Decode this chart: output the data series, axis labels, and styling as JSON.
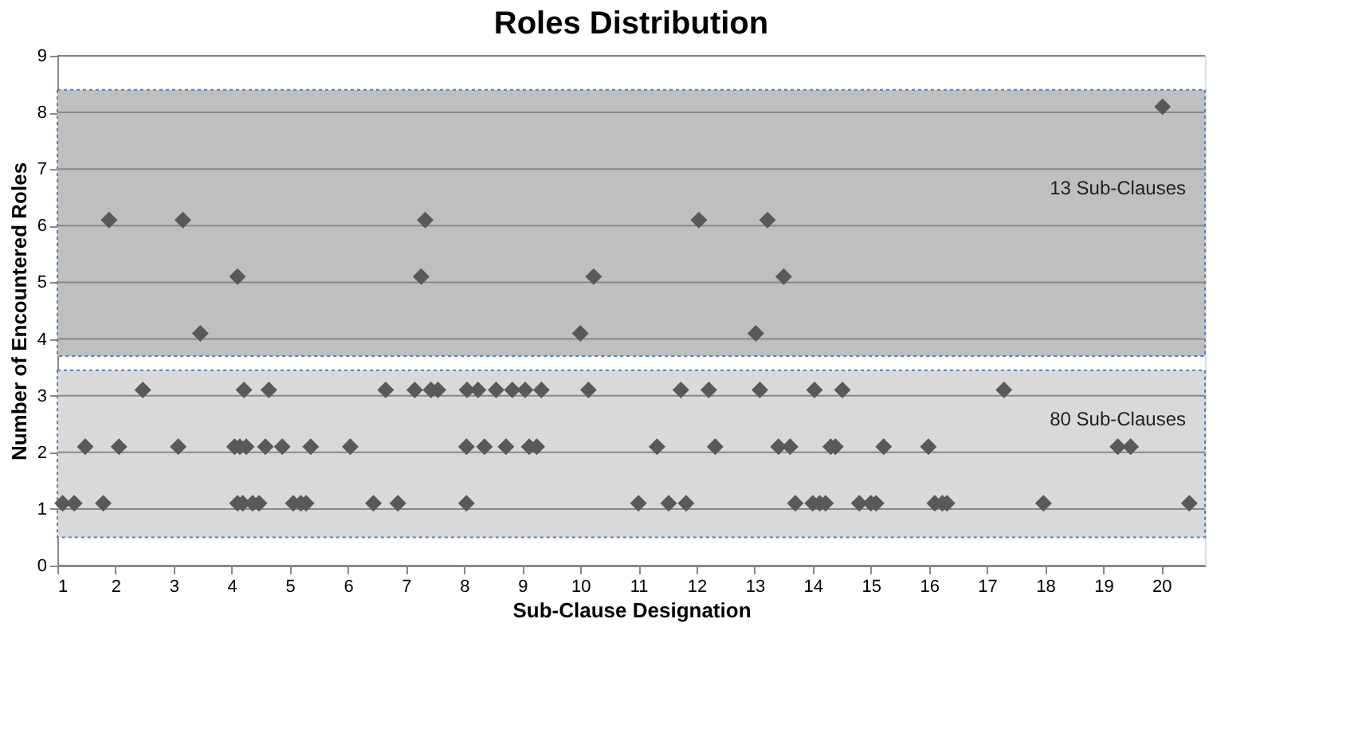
{
  "chart_data": {
    "type": "scatter",
    "title": "Roles Distribution",
    "xlabel": "Sub-Clause Designation",
    "ylabel": "Number of Encountered Roles",
    "x": [
      1.89,
      3.16,
      7.33,
      12.04,
      13.22,
      4.1,
      7.26,
      10.23,
      13.5,
      3.46,
      10.0,
      13.02,
      2.47,
      4.21,
      4.64,
      6.65,
      7.15,
      7.43,
      7.55,
      8.05,
      8.24,
      8.55,
      8.83,
      9.05,
      9.33,
      10.14,
      11.73,
      12.21,
      13.09,
      14.03,
      14.51,
      17.29,
      1.48,
      2.06,
      3.08,
      4.05,
      4.14,
      4.25,
      4.58,
      4.87,
      5.36,
      6.04,
      8.04,
      8.35,
      8.72,
      9.12,
      9.25,
      11.32,
      12.32,
      13.41,
      13.61,
      14.31,
      14.39,
      15.22,
      15.99,
      19.25,
      19.47,
      1.09,
      1.29,
      1.79,
      4.1,
      4.19,
      4.36,
      4.47,
      5.06,
      5.19,
      5.28,
      6.44,
      6.86,
      8.04,
      11.0,
      11.52,
      11.82,
      13.7,
      14.0,
      14.12,
      14.22,
      14.8,
      15.0,
      15.09,
      16.1,
      16.23,
      16.31,
      17.97,
      20.48,
      20.02
    ],
    "series": [
      {
        "color": "#595959",
        "values": [
          6.1,
          6.1,
          6.1,
          6.1,
          6.1,
          5.1,
          5.1,
          5.1,
          5.1,
          4.1,
          4.1,
          4.1,
          3.1,
          3.1,
          3.1,
          3.1,
          3.1,
          3.1,
          3.1,
          3.1,
          3.1,
          3.1,
          3.1,
          3.1,
          3.1,
          3.1,
          3.1,
          3.1,
          3.1,
          3.1,
          3.1,
          3.1,
          2.1,
          2.1,
          2.1,
          2.1,
          2.1,
          2.1,
          2.1,
          2.1,
          2.1,
          2.1,
          2.1,
          2.1,
          2.1,
          2.1,
          2.1,
          2.1,
          2.1,
          2.1,
          2.1,
          2.1,
          2.1,
          2.1,
          2.1,
          2.1,
          2.1,
          1.1,
          1.1,
          1.1,
          1.1,
          1.1,
          1.1,
          1.1,
          1.1,
          1.1,
          1.1,
          1.1,
          1.1,
          1.1,
          1.1,
          1.1,
          1.1,
          1.1,
          1.1,
          1.1,
          1.1,
          1.1,
          1.1,
          1.1,
          1.1,
          1.1,
          1.1,
          1.1,
          1.1,
          8.1
        ]
      }
    ],
    "marker": "diamond",
    "xlim": [
      1,
      20.75
    ],
    "xticks": [
      1,
      2,
      3,
      4,
      5,
      6,
      7,
      8,
      9,
      10,
      11,
      12,
      13,
      14,
      15,
      16,
      17,
      18,
      19,
      20
    ],
    "ylim": [
      0,
      9
    ],
    "yticks": [
      0,
      1,
      2,
      3,
      4,
      5,
      6,
      7,
      8,
      9
    ],
    "grid": "y",
    "bands": [
      {
        "axis": "y",
        "from": 3.7,
        "to": 8.4,
        "label": "13 Sub-Clauses",
        "color": "#bfbfbf"
      },
      {
        "axis": "y",
        "from": 0.5,
        "to": 3.45,
        "label": "80 Sub-Clauses",
        "color": "#d9d9d9"
      }
    ]
  }
}
